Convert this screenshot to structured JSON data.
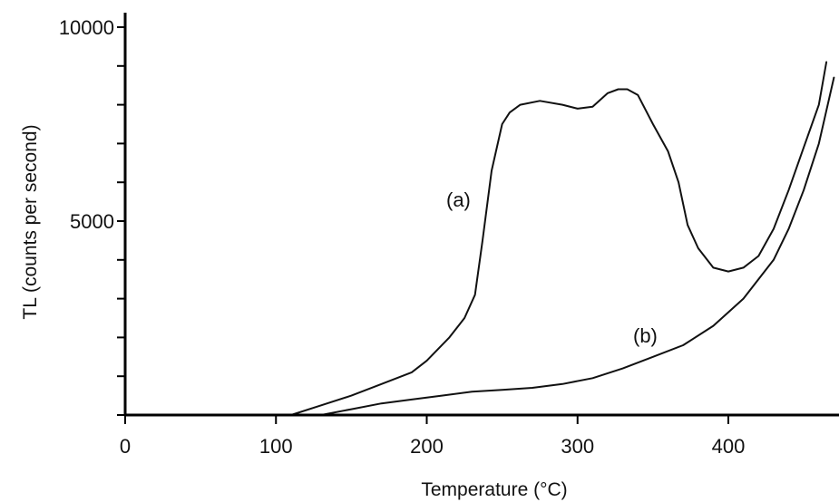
{
  "chart_data": {
    "type": "line",
    "title": "",
    "xlabel": "Temperature  (°C)",
    "ylabel": "TL  (counts per second)",
    "xlim": [
      0,
      475
    ],
    "ylim": [
      0,
      10000
    ],
    "x_ticks": [
      0,
      100,
      200,
      300,
      400
    ],
    "x_tick_labels": [
      "0",
      "100",
      "200",
      "300",
      "400"
    ],
    "y_ticks": [
      0,
      1000,
      2000,
      3000,
      4000,
      5000,
      6000,
      7000,
      8000,
      9000,
      10000
    ],
    "y_tick_labels": [
      "10000",
      "5000"
    ],
    "y_labeled_ticks": [
      10000,
      5000
    ],
    "grid": false,
    "series": [
      {
        "name": "(a)",
        "x": [
          110,
          130,
          150,
          170,
          190,
          200,
          215,
          225,
          232,
          237,
          243,
          250,
          255,
          262,
          275,
          290,
          300,
          310,
          320,
          327,
          333,
          340,
          350,
          360,
          367,
          373,
          380,
          390,
          400,
          410,
          420,
          430,
          440,
          450,
          460,
          465
        ],
        "y": [
          0,
          250,
          500,
          800,
          1100,
          1400,
          2000,
          2500,
          3100,
          4500,
          6300,
          7500,
          7800,
          8000,
          8100,
          8000,
          7900,
          7950,
          8300,
          8400,
          8400,
          8250,
          7500,
          6800,
          6000,
          4900,
          4300,
          3800,
          3700,
          3800,
          4100,
          4800,
          5800,
          6900,
          8000,
          9100
        ]
      },
      {
        "name": "(b)",
        "x": [
          130,
          150,
          170,
          190,
          210,
          230,
          250,
          270,
          290,
          310,
          330,
          350,
          370,
          390,
          410,
          430,
          440,
          450,
          460,
          470
        ],
        "y": [
          0,
          150,
          300,
          400,
          500,
          600,
          650,
          700,
          800,
          950,
          1200,
          1500,
          1800,
          2300,
          3000,
          4000,
          4800,
          5800,
          7000,
          8700
        ]
      }
    ],
    "annotations": [
      {
        "text": "(a)",
        "series": "(a)"
      },
      {
        "text": "(b)",
        "series": "(b)"
      }
    ]
  }
}
